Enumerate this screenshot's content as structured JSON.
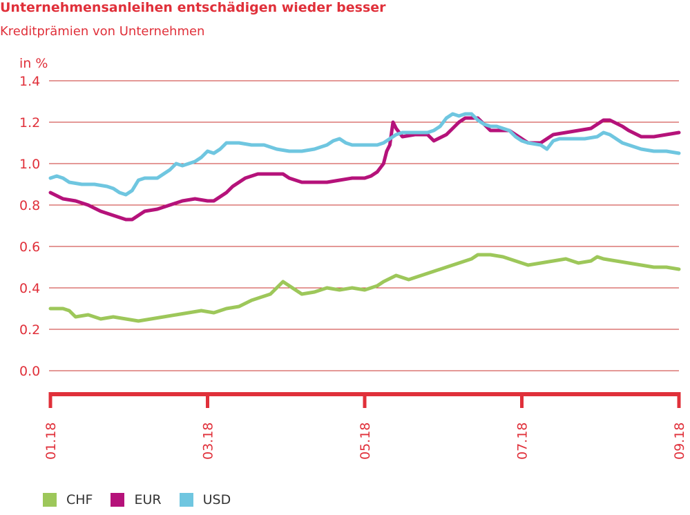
{
  "header": {
    "title": "Unternehmensanleihen entschädigen wieder besser",
    "subtitle": "Kreditprämien von Unternehmen"
  },
  "colors": {
    "accent": "#e0303a",
    "grid": "#c9302c",
    "CHF": "#9dc75a",
    "EUR": "#b5127a",
    "USD": "#6fc6e0"
  },
  "chart_data": {
    "type": "line",
    "title": "Unternehmensanleihen entschädigen wieder besser",
    "subtitle": "Kreditprämien von Unternehmen",
    "ylabel": "in %",
    "ylim": [
      0.0,
      1.4
    ],
    "yticks": [
      "1.4",
      "1.2",
      "1.0",
      "0.8",
      "0.6",
      "0.4",
      "0.2",
      "0.0"
    ],
    "xticks": [
      "01.18",
      "03.18",
      "05.18",
      "07.18",
      "09.18"
    ],
    "grid": true,
    "legend_position": "bottom-left",
    "series": [
      {
        "name": "CHF",
        "color": "#9dc75a",
        "points": [
          [
            0.0,
            0.3
          ],
          [
            0.02,
            0.3
          ],
          [
            0.03,
            0.29
          ],
          [
            0.04,
            0.26
          ],
          [
            0.06,
            0.27
          ],
          [
            0.08,
            0.25
          ],
          [
            0.1,
            0.26
          ],
          [
            0.12,
            0.25
          ],
          [
            0.14,
            0.24
          ],
          [
            0.16,
            0.25
          ],
          [
            0.18,
            0.26
          ],
          [
            0.2,
            0.27
          ],
          [
            0.22,
            0.28
          ],
          [
            0.24,
            0.29
          ],
          [
            0.26,
            0.28
          ],
          [
            0.28,
            0.3
          ],
          [
            0.3,
            0.31
          ],
          [
            0.32,
            0.34
          ],
          [
            0.34,
            0.36
          ],
          [
            0.35,
            0.37
          ],
          [
            0.37,
            0.43
          ],
          [
            0.39,
            0.39
          ],
          [
            0.4,
            0.37
          ],
          [
            0.42,
            0.38
          ],
          [
            0.44,
            0.4
          ],
          [
            0.46,
            0.39
          ],
          [
            0.48,
            0.4
          ],
          [
            0.5,
            0.39
          ],
          [
            0.51,
            0.4
          ],
          [
            0.52,
            0.41
          ],
          [
            0.53,
            0.43
          ],
          [
            0.55,
            0.46
          ],
          [
            0.57,
            0.44
          ],
          [
            0.59,
            0.46
          ],
          [
            0.61,
            0.48
          ],
          [
            0.63,
            0.5
          ],
          [
            0.65,
            0.52
          ],
          [
            0.67,
            0.54
          ],
          [
            0.68,
            0.56
          ],
          [
            0.7,
            0.56
          ],
          [
            0.72,
            0.55
          ],
          [
            0.74,
            0.53
          ],
          [
            0.76,
            0.51
          ],
          [
            0.78,
            0.52
          ],
          [
            0.8,
            0.53
          ],
          [
            0.82,
            0.54
          ],
          [
            0.84,
            0.52
          ],
          [
            0.86,
            0.53
          ],
          [
            0.87,
            0.55
          ],
          [
            0.88,
            0.54
          ],
          [
            0.9,
            0.53
          ],
          [
            0.92,
            0.52
          ],
          [
            0.94,
            0.51
          ],
          [
            0.96,
            0.5
          ],
          [
            0.98,
            0.5
          ],
          [
            1.0,
            0.49
          ]
        ]
      },
      {
        "name": "EUR",
        "color": "#b5127a",
        "points": [
          [
            0.0,
            0.86
          ],
          [
            0.02,
            0.83
          ],
          [
            0.04,
            0.82
          ],
          [
            0.06,
            0.8
          ],
          [
            0.08,
            0.77
          ],
          [
            0.1,
            0.75
          ],
          [
            0.12,
            0.73
          ],
          [
            0.13,
            0.73
          ],
          [
            0.14,
            0.75
          ],
          [
            0.15,
            0.77
          ],
          [
            0.17,
            0.78
          ],
          [
            0.19,
            0.8
          ],
          [
            0.21,
            0.82
          ],
          [
            0.23,
            0.83
          ],
          [
            0.25,
            0.82
          ],
          [
            0.26,
            0.82
          ],
          [
            0.28,
            0.86
          ],
          [
            0.29,
            0.89
          ],
          [
            0.31,
            0.93
          ],
          [
            0.33,
            0.95
          ],
          [
            0.35,
            0.95
          ],
          [
            0.37,
            0.95
          ],
          [
            0.38,
            0.93
          ],
          [
            0.4,
            0.91
          ],
          [
            0.42,
            0.91
          ],
          [
            0.44,
            0.91
          ],
          [
            0.46,
            0.92
          ],
          [
            0.48,
            0.93
          ],
          [
            0.5,
            0.93
          ],
          [
            0.51,
            0.94
          ],
          [
            0.52,
            0.96
          ],
          [
            0.53,
            1.0
          ],
          [
            0.535,
            1.06
          ],
          [
            0.54,
            1.09
          ],
          [
            0.545,
            1.2
          ],
          [
            0.55,
            1.17
          ],
          [
            0.56,
            1.13
          ],
          [
            0.58,
            1.14
          ],
          [
            0.6,
            1.14
          ],
          [
            0.61,
            1.11
          ],
          [
            0.63,
            1.14
          ],
          [
            0.64,
            1.17
          ],
          [
            0.65,
            1.2
          ],
          [
            0.66,
            1.22
          ],
          [
            0.68,
            1.22
          ],
          [
            0.69,
            1.19
          ],
          [
            0.7,
            1.16
          ],
          [
            0.72,
            1.16
          ],
          [
            0.73,
            1.16
          ],
          [
            0.74,
            1.14
          ],
          [
            0.75,
            1.12
          ],
          [
            0.76,
            1.1
          ],
          [
            0.78,
            1.1
          ],
          [
            0.79,
            1.12
          ],
          [
            0.8,
            1.14
          ],
          [
            0.82,
            1.15
          ],
          [
            0.84,
            1.16
          ],
          [
            0.86,
            1.17
          ],
          [
            0.87,
            1.19
          ],
          [
            0.88,
            1.21
          ],
          [
            0.89,
            1.21
          ],
          [
            0.91,
            1.18
          ],
          [
            0.92,
            1.16
          ],
          [
            0.94,
            1.13
          ],
          [
            0.96,
            1.13
          ],
          [
            0.98,
            1.14
          ],
          [
            1.0,
            1.15
          ]
        ]
      },
      {
        "name": "USD",
        "color": "#6fc6e0",
        "points": [
          [
            0.0,
            0.93
          ],
          [
            0.01,
            0.94
          ],
          [
            0.02,
            0.93
          ],
          [
            0.03,
            0.91
          ],
          [
            0.05,
            0.9
          ],
          [
            0.07,
            0.9
          ],
          [
            0.09,
            0.89
          ],
          [
            0.1,
            0.88
          ],
          [
            0.11,
            0.86
          ],
          [
            0.12,
            0.85
          ],
          [
            0.13,
            0.87
          ],
          [
            0.14,
            0.92
          ],
          [
            0.15,
            0.93
          ],
          [
            0.17,
            0.93
          ],
          [
            0.18,
            0.95
          ],
          [
            0.19,
            0.97
          ],
          [
            0.2,
            1.0
          ],
          [
            0.21,
            0.99
          ],
          [
            0.22,
            1.0
          ],
          [
            0.23,
            1.01
          ],
          [
            0.24,
            1.03
          ],
          [
            0.25,
            1.06
          ],
          [
            0.26,
            1.05
          ],
          [
            0.27,
            1.07
          ],
          [
            0.28,
            1.1
          ],
          [
            0.3,
            1.1
          ],
          [
            0.32,
            1.09
          ],
          [
            0.34,
            1.09
          ],
          [
            0.36,
            1.07
          ],
          [
            0.38,
            1.06
          ],
          [
            0.4,
            1.06
          ],
          [
            0.42,
            1.07
          ],
          [
            0.44,
            1.09
          ],
          [
            0.45,
            1.11
          ],
          [
            0.46,
            1.12
          ],
          [
            0.47,
            1.1
          ],
          [
            0.48,
            1.09
          ],
          [
            0.5,
            1.09
          ],
          [
            0.52,
            1.09
          ],
          [
            0.53,
            1.1
          ],
          [
            0.54,
            1.12
          ],
          [
            0.55,
            1.14
          ],
          [
            0.56,
            1.15
          ],
          [
            0.58,
            1.15
          ],
          [
            0.6,
            1.15
          ],
          [
            0.61,
            1.16
          ],
          [
            0.62,
            1.18
          ],
          [
            0.63,
            1.22
          ],
          [
            0.64,
            1.24
          ],
          [
            0.65,
            1.23
          ],
          [
            0.66,
            1.24
          ],
          [
            0.67,
            1.24
          ],
          [
            0.68,
            1.21
          ],
          [
            0.69,
            1.19
          ],
          [
            0.7,
            1.18
          ],
          [
            0.71,
            1.18
          ],
          [
            0.72,
            1.17
          ],
          [
            0.73,
            1.16
          ],
          [
            0.74,
            1.13
          ],
          [
            0.75,
            1.11
          ],
          [
            0.76,
            1.1
          ],
          [
            0.78,
            1.09
          ],
          [
            0.79,
            1.07
          ],
          [
            0.8,
            1.11
          ],
          [
            0.81,
            1.12
          ],
          [
            0.83,
            1.12
          ],
          [
            0.85,
            1.12
          ],
          [
            0.87,
            1.13
          ],
          [
            0.88,
            1.15
          ],
          [
            0.89,
            1.14
          ],
          [
            0.9,
            1.12
          ],
          [
            0.91,
            1.1
          ],
          [
            0.92,
            1.09
          ],
          [
            0.93,
            1.08
          ],
          [
            0.94,
            1.07
          ],
          [
            0.96,
            1.06
          ],
          [
            0.98,
            1.06
          ],
          [
            1.0,
            1.05
          ]
        ]
      }
    ]
  },
  "legend": {
    "items": [
      "CHF",
      "EUR",
      "USD"
    ]
  }
}
